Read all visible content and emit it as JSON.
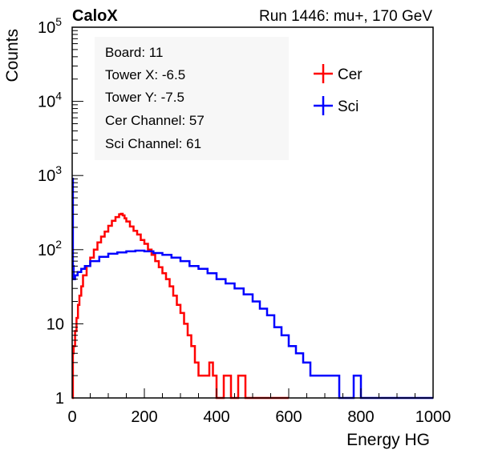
{
  "header": {
    "left": "CaloX",
    "right": "Run 1446: mu+, 170 GeV"
  },
  "info_box": {
    "lines": [
      "Board: 11",
      "Tower X: -6.5",
      "Tower Y: -7.5",
      "Cer Channel: 57",
      "Sci Channel: 61"
    ]
  },
  "chart_data": {
    "type": "line",
    "title": "",
    "xlabel": "Energy HG",
    "ylabel": "Counts",
    "xlim": [
      0,
      1000
    ],
    "ylim": [
      1,
      100000
    ],
    "yscale": "log",
    "grid": false,
    "legend_position": "top-right",
    "x_ticks": [
      "0",
      "200",
      "400",
      "600",
      "800",
      "1000"
    ],
    "y_ticks": [
      {
        "value": 1,
        "base": "1",
        "exp": ""
      },
      {
        "value": 10,
        "base": "10",
        "exp": ""
      },
      {
        "value": 100,
        "base": "10",
        "exp": "2"
      },
      {
        "value": 1000,
        "base": "10",
        "exp": "3"
      },
      {
        "value": 10000,
        "base": "10",
        "exp": "4"
      },
      {
        "value": 100000,
        "base": "10",
        "exp": "5"
      }
    ],
    "series": [
      {
        "name": "Cer",
        "color": "#ff0000",
        "x": [
          0,
          2,
          4,
          8,
          12,
          16,
          20,
          25,
          30,
          40,
          50,
          60,
          70,
          80,
          90,
          100,
          110,
          120,
          130,
          135,
          140,
          145,
          150,
          160,
          170,
          180,
          190,
          200,
          210,
          220,
          230,
          240,
          250,
          260,
          270,
          280,
          290,
          300,
          310,
          320,
          330,
          340,
          350,
          360,
          370,
          380,
          390,
          400,
          420,
          440,
          460,
          480,
          500,
          520,
          560,
          600
        ],
        "y": [
          1,
          4,
          5,
          8,
          12,
          18,
          24,
          32,
          45,
          60,
          78,
          100,
          125,
          150,
          175,
          210,
          245,
          275,
          300,
          305,
          290,
          265,
          240,
          205,
          180,
          160,
          135,
          120,
          100,
          85,
          70,
          58,
          48,
          40,
          32,
          24,
          18,
          14,
          10,
          7,
          5,
          3,
          2,
          2,
          2,
          3,
          2,
          1,
          2,
          1,
          2,
          1,
          1,
          1,
          1,
          1
        ]
      },
      {
        "name": "Sci",
        "color": "#0000ff",
        "x": [
          0,
          2,
          4,
          8,
          15,
          25,
          35,
          50,
          75,
          100,
          125,
          150,
          175,
          200,
          225,
          250,
          275,
          300,
          325,
          350,
          375,
          400,
          425,
          450,
          475,
          500,
          520,
          540,
          560,
          580,
          600,
          620,
          640,
          660,
          680,
          700,
          720,
          740,
          760,
          780,
          800,
          820,
          840,
          860,
          880,
          900,
          950,
          1000
        ],
        "y": [
          900,
          60,
          40,
          45,
          50,
          55,
          60,
          70,
          80,
          88,
          92,
          95,
          97,
          95,
          90,
          85,
          78,
          70,
          60,
          55,
          48,
          40,
          35,
          30,
          25,
          20,
          16,
          13,
          9,
          7,
          5,
          4,
          3,
          2,
          2,
          2,
          2,
          1,
          1,
          2,
          1,
          1,
          1,
          1,
          1,
          1,
          1,
          1
        ]
      }
    ]
  }
}
